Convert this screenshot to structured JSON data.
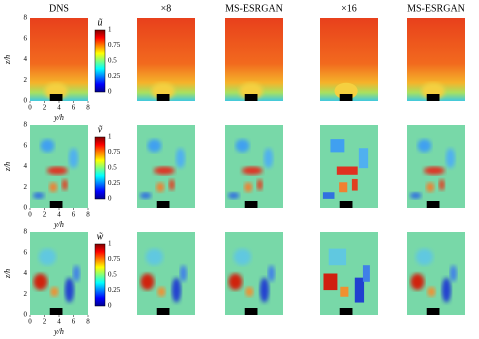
{
  "columns": [
    "DNS",
    "×8",
    "MS-ESRGAN",
    "×16",
    "MS-ESRGAN"
  ],
  "rows": [
    {
      "symbol": "ũ"
    },
    {
      "symbol": "ṽ"
    },
    {
      "symbol": "w̃"
    }
  ],
  "x_axis": {
    "label": "y/h",
    "ticks": [
      "0",
      "2",
      "4",
      "6",
      "8"
    ]
  },
  "y_axis": {
    "label": "z/h",
    "ticks": [
      "0",
      "2",
      "4",
      "6",
      "8"
    ]
  },
  "colorbar_ticks": [
    "1",
    "0.75",
    "0.5",
    "0.25",
    "0"
  ]
}
